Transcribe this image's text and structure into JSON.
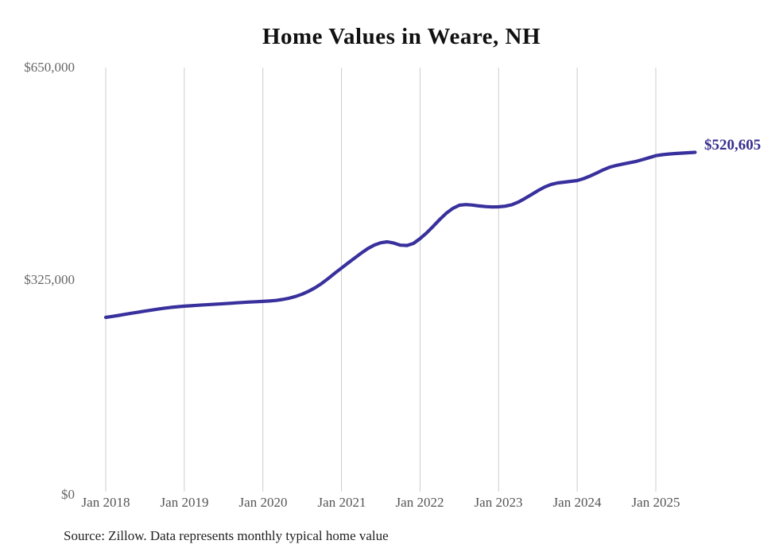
{
  "title": "Home Values in Weare, NH",
  "source_note": "Source: Zillow. Data represents monthly typical home value",
  "end_label": "$520,605",
  "colors": {
    "line": "#38309c",
    "end_label": "#37308f",
    "gridline": "#cccccc",
    "y_label": "#666666",
    "x_label": "#555555",
    "title": "#111111",
    "source": "#1f1f1f",
    "background": "#ffffff"
  },
  "chart_data": {
    "type": "line",
    "title": "Home Values in Weare, NH",
    "xlabel": "",
    "ylabel": "",
    "ylim": [
      0,
      650000
    ],
    "grid": "vertical-only",
    "legend": "none",
    "x_start_month": "Jan 2018",
    "x_end_month": "Jul 2025",
    "x_tick_labels": [
      "Jan 2018",
      "Jan 2019",
      "Jan 2020",
      "Jan 2021",
      "Jan 2022",
      "Jan 2023",
      "Jan 2024",
      "Jan 2025"
    ],
    "y_ticks": [
      {
        "label": "$650,000",
        "value": 650000
      },
      {
        "label": "$325,000",
        "value": 325000
      },
      {
        "label": "$0",
        "value": 0
      }
    ],
    "final_value": 520605,
    "series": [
      {
        "name": "Monthly typical home value",
        "values": [
          268500,
          270000,
          271600,
          273200,
          274900,
          276500,
          278100,
          279700,
          281200,
          282600,
          283800,
          284800,
          285600,
          286300,
          287000,
          287600,
          288200,
          288800,
          289400,
          290000,
          290700,
          291400,
          292000,
          292500,
          292900,
          293500,
          294400,
          295800,
          297800,
          300500,
          304000,
          308500,
          314000,
          320500,
          328000,
          336000,
          343800,
          351500,
          359000,
          366500,
          373500,
          379000,
          382500,
          383900,
          382000,
          378800,
          378300,
          381500,
          388800,
          397500,
          407500,
          418000,
          427500,
          435000,
          439800,
          440800,
          440000,
          438700,
          437800,
          437200,
          437400,
          438300,
          440500,
          444500,
          450000,
          456000,
          462000,
          467500,
          471500,
          473800,
          475000,
          476300,
          477500,
          480500,
          484500,
          489200,
          494000,
          498000,
          500700,
          502700,
          504700,
          506800,
          509500,
          512500,
          515500,
          517000,
          518000,
          518800,
          519400,
          520000,
          520605
        ]
      }
    ]
  }
}
